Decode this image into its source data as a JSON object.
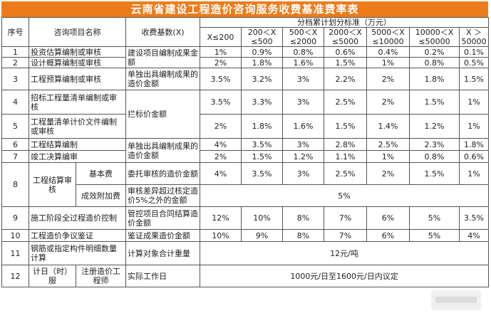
{
  "title": "云南省建设工程造价咨询服务收费基准费率表",
  "header": {
    "seq": "序号",
    "item": "咨询项目名称",
    "base": "收费基数(X)",
    "tier_group": "分档累计划分标准（万元）",
    "tiers": [
      "X≤200",
      "200＜X ≤500",
      "500＜X ≤2000",
      "2000＜X ≤5000",
      "5000＜X ≤10000",
      "10000＜X ≤50000",
      "X ＞ 50000"
    ]
  },
  "rows": [
    {
      "seq": "1",
      "item": "投资估算编制或审核",
      "rates": [
        "1%",
        "0.9%",
        "0.8%",
        "0.6%",
        "0.4%",
        "0.2%",
        "0.1%"
      ]
    },
    {
      "seq": "2",
      "item": "设计概算编制或审核",
      "rates": [
        "2%",
        "1.8%",
        "1.6%",
        "1.5%",
        "1%",
        "0.8%",
        "0.5%"
      ]
    },
    {
      "seq": "3",
      "item": "工程预算编制或审核",
      "base": "单独出具编制成果的造价金额",
      "rates": [
        "3.5%",
        "3.2%",
        "3%",
        "2.2%",
        "2%",
        "1.8%",
        "1.5%"
      ]
    },
    {
      "seq": "4",
      "item": "招标工程量清单编制或审核",
      "rates": [
        "3.5%",
        "3.3%",
        "3%",
        "2.5%",
        "2%",
        "1.5%",
        "1%"
      ]
    },
    {
      "seq": "5",
      "item": "工程量清单计价文件编制或审核",
      "rates": [
        "2%",
        "1.8%",
        "1.6%",
        "1.5%",
        "1.4%",
        "1.2%",
        "1%"
      ]
    },
    {
      "seq": "6",
      "item": "工程结算编制",
      "rates": [
        "4%",
        "3.5%",
        "3%",
        "2.8%",
        "2.5%",
        "2.3%",
        "1.8%"
      ]
    },
    {
      "seq": "7",
      "item": "竣工决算编审",
      "rates": [
        "2%",
        "1.5%",
        "1.2%",
        "1.1%",
        "1%",
        "0.8%",
        "0.6%"
      ]
    },
    {
      "seq": "8",
      "item": "工程结算审核",
      "basic_fee": "基本费",
      "basic_base": "委托审核的造价金额",
      "basic_rates": [
        "4%",
        "3.5%",
        "3%",
        "2.5%",
        "2%",
        "1.5%",
        "1%"
      ],
      "extra_fee": "成效附加费",
      "extra_base": "审核差异超过核定造价5%之外的金额",
      "extra_rate": "5%"
    },
    {
      "seq": "9",
      "item": "施工阶段全过程造价控制",
      "base": "管控项目合同结算造价金额",
      "rates": [
        "12%",
        "10%",
        "8%",
        "7%",
        "6%",
        "5%",
        "3.5%"
      ]
    },
    {
      "seq": "10",
      "item": "工程造价争议鉴证",
      "base": "鉴证成果造价金额",
      "rates": [
        "10%",
        "9%",
        "8%",
        "7%",
        "6%",
        "5%",
        "4%"
      ]
    },
    {
      "seq": "11",
      "item": "钢筋或指定构件明细数量计算",
      "base": "计算对象合计重量",
      "rate": "12元/吨"
    },
    {
      "seq": "12",
      "item": "计日（时）服",
      "sub": "注册造价工程师",
      "base": "实际工作日",
      "rate": "1000元/日至1600元/日内议定"
    }
  ],
  "shared_bases": {
    "rows_1_2": "建设项目编制成果金额",
    "rows_4_5": "拦标价金额",
    "rows_6_7": "单独出具编制成果的造价金额"
  }
}
